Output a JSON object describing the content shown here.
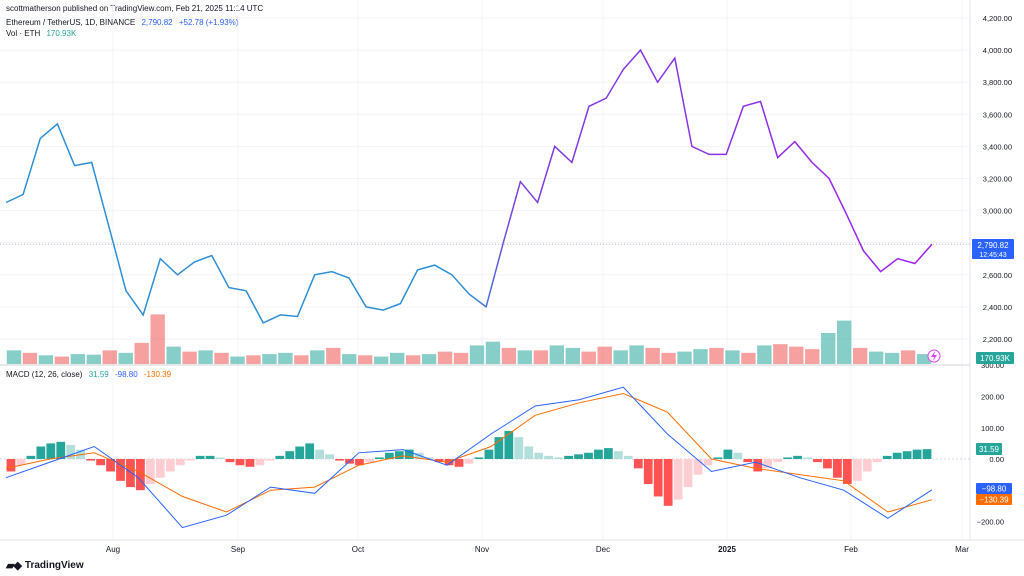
{
  "header": {
    "published": "scottmatherson published on TradingView.com, Feb 21, 2025 11:14 UTC",
    "symbol": "Ethereum / TetherUS, 1D, BINANCE",
    "price": "2,790.82",
    "change": "+52.78 (+1.93%)",
    "vol_label": "Vol · ETH",
    "vol_value": "170.93K",
    "macd_label": "MACD (12, 26, close)",
    "macd_hist": "31.59",
    "macd_line": "-98.80",
    "macd_signal": "-130.39"
  },
  "badges": {
    "price": "2,790.82",
    "countdown": "12:45:43",
    "volume": "170.93K",
    "hist": "31.59",
    "macd": "−98.80",
    "signal": "−130.39"
  },
  "branding": {
    "logo_text": "TradingView"
  },
  "colors": {
    "price_line_start": "#2e8ed6",
    "price_line_end": "#a020f0",
    "volume_up": "#26a69a",
    "volume_down": "#ef5350",
    "macd_line": "#2962ff",
    "signal_line": "#ff6d00",
    "hist_pos_strong": "#26a69a",
    "hist_pos_weak": "#b2dfdb",
    "hist_neg_strong": "#ff5252",
    "hist_neg_weak": "#ffcdd2"
  },
  "chart_data": [
    {
      "type": "line",
      "title": "Ethereum / TetherUS, 1D, BINANCE",
      "x": [
        "Jul 1",
        "Jul 8",
        "Jul 15",
        "Jul 21",
        "Jul 25",
        "Jul 29",
        "Aug 3",
        "Aug 5",
        "Aug 8",
        "Aug 12",
        "Aug 15",
        "Aug 19",
        "Aug 23",
        "Aug 27",
        "Sep 1",
        "Sep 6",
        "Sep 10",
        "Sep 15",
        "Sep 20",
        "Sep 24",
        "Sep 28",
        "Oct 3",
        "Oct 8",
        "Oct 13",
        "Oct 18",
        "Oct 22",
        "Oct 26",
        "Oct 31",
        "Nov 4",
        "Nov 6",
        "Nov 10",
        "Nov 15",
        "Nov 20",
        "Nov 25",
        "Nov 29",
        "Dec 2",
        "Dec 6",
        "Dec 9",
        "Dec 12",
        "Dec 16",
        "Dec 20",
        "Dec 25",
        "Dec 30",
        "Jan 3",
        "Jan 6",
        "Jan 10",
        "Jan 15",
        "Jan 20",
        "Jan 25",
        "Jan 30",
        "Feb 3",
        "Feb 7",
        "Feb 12",
        "Feb 16",
        "Feb 21"
      ],
      "values": [
        3050,
        3100,
        3450,
        3540,
        3280,
        3300,
        2900,
        2500,
        2350,
        2700,
        2600,
        2680,
        2720,
        2520,
        2500,
        2300,
        2350,
        2340,
        2600,
        2620,
        2580,
        2400,
        2380,
        2420,
        2630,
        2660,
        2600,
        2480,
        2400,
        2800,
        3180,
        3050,
        3400,
        3300,
        3650,
        3700,
        3880,
        4000,
        3800,
        3950,
        3400,
        3350,
        3350,
        3650,
        3680,
        3330,
        3430,
        3300,
        3200,
        2980,
        2750,
        2620,
        2700,
        2670,
        2790
      ],
      "ylim": [
        2100,
        4200
      ],
      "ticks_y": [
        "2,200.00",
        "2,400.00",
        "2,600.00",
        "2,800.00",
        "3,000.00",
        "3,200.00",
        "3,400.00",
        "3,600.00",
        "3,800.00",
        "4,000.00",
        "4,200.00"
      ],
      "ticks_x": [
        "Aug",
        "Sep",
        "Oct",
        "Nov",
        "Dec",
        "2025",
        "Feb",
        "Mar"
      ],
      "last": 2790.82
    },
    {
      "type": "bar",
      "title": "Vol · ETH",
      "values": [
        22,
        18,
        14,
        12,
        16,
        15,
        22,
        18,
        34,
        80,
        28,
        20,
        22,
        18,
        12,
        14,
        16,
        18,
        14,
        22,
        26,
        16,
        14,
        12,
        18,
        14,
        16,
        20,
        18,
        30,
        36,
        26,
        22,
        22,
        30,
        26,
        20,
        28,
        22,
        30,
        26,
        18,
        20,
        24,
        26,
        22,
        18,
        30,
        32,
        28,
        24,
        50,
        70,
        26,
        20,
        18,
        22,
        16
      ],
      "up": [
        1,
        0,
        1,
        0,
        1,
        1,
        0,
        1,
        0,
        0,
        1,
        0,
        1,
        0,
        1,
        0,
        1,
        1,
        0,
        1,
        0,
        1,
        0,
        1,
        1,
        0,
        1,
        0,
        0,
        1,
        1,
        0,
        1,
        0,
        1,
        1,
        0,
        0,
        1,
        1,
        0,
        0,
        1,
        1,
        0,
        1,
        0,
        1,
        0,
        0,
        0,
        1,
        1,
        0,
        1,
        1,
        0,
        1
      ],
      "last_label": "170.93K"
    },
    {
      "type": "line",
      "title": "MACD (12, 26, close)",
      "x": [
        "Jul 1",
        "Jul 15",
        "Jul 22",
        "Aug 1",
        "Aug 6",
        "Aug 15",
        "Sep 1",
        "Sep 15",
        "Oct 1",
        "Oct 15",
        "Nov 1",
        "Nov 10",
        "Nov 20",
        "Dec 1",
        "Dec 10",
        "Dec 20",
        "Jan 1",
        "Jan 10",
        "Jan 20",
        "Feb 1",
        "Feb 10",
        "Feb 21"
      ],
      "series": [
        {
          "name": "MACD",
          "values": [
            -60,
            -10,
            40,
            -60,
            -220,
            -180,
            -90,
            -110,
            20,
            30,
            -20,
            80,
            170,
            190,
            230,
            80,
            -40,
            -10,
            -60,
            -100,
            -190,
            -98.8
          ]
        },
        {
          "name": "Signal",
          "values": [
            -30,
            0,
            20,
            -40,
            -120,
            -170,
            -100,
            -90,
            -20,
            10,
            -10,
            40,
            140,
            180,
            210,
            150,
            0,
            -30,
            -50,
            -70,
            -170,
            -130.39
          ]
        }
      ],
      "histogram": [
        -40,
        -20,
        10,
        40,
        50,
        55,
        45,
        30,
        -5,
        -20,
        -40,
        -70,
        -90,
        -100,
        -80,
        -60,
        -40,
        -20,
        -5,
        10,
        10,
        5,
        -10,
        -20,
        -25,
        -20,
        -5,
        10,
        25,
        40,
        50,
        30,
        15,
        -5,
        -15,
        -20,
        -10,
        5,
        20,
        25,
        30,
        20,
        5,
        -10,
        -20,
        -25,
        -15,
        5,
        30,
        70,
        90,
        70,
        40,
        20,
        10,
        5,
        10,
        15,
        20,
        30,
        35,
        25,
        10,
        -30,
        -80,
        -120,
        -150,
        -130,
        -90,
        -50,
        -20,
        5,
        30,
        20,
        -10,
        -40,
        -30,
        -10,
        5,
        10,
        5,
        -10,
        -30,
        -60,
        -80,
        -70,
        -40,
        -10,
        10,
        20,
        25,
        30,
        31.59
      ],
      "ylim": [
        -260,
        260
      ],
      "ticks_y": [
        "200.00",
        "100.00",
        "0.00",
        "-100.00",
        "-200.00"
      ]
    }
  ]
}
